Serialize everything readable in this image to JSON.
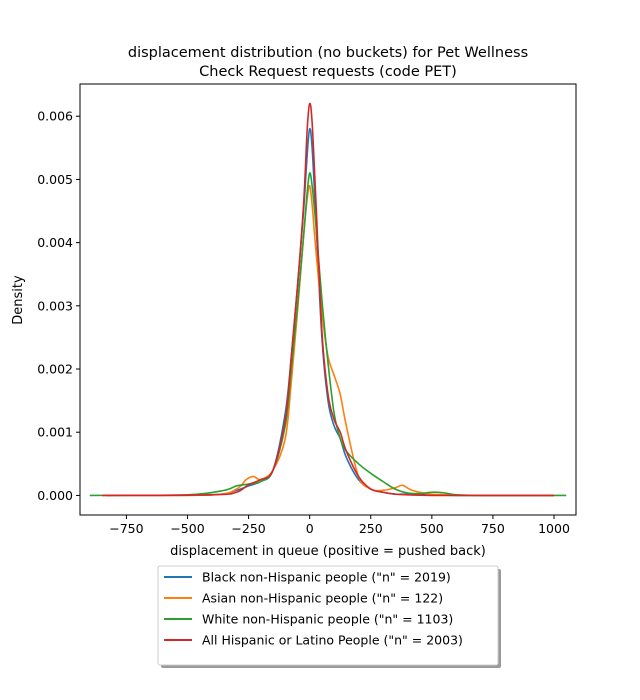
{
  "chart_data": {
    "type": "line",
    "title": "displacement distribution (no buckets)  for Pet Wellness\nCheck Request requests (code PET)",
    "xlabel": "displacement in queue (positive = pushed back)",
    "ylabel": "Density",
    "xlim": [
      -940,
      1090
    ],
    "ylim": [
      -0.00031,
      0.00651
    ],
    "x_ticks": [
      -750,
      -500,
      -250,
      0,
      250,
      500,
      750,
      1000
    ],
    "x_tick_labels": [
      "−750",
      "−500",
      "−250",
      "0",
      "250",
      "500",
      "750",
      "1000"
    ],
    "y_ticks": [
      0.0,
      0.001,
      0.002,
      0.003,
      0.004,
      0.005,
      0.006
    ],
    "y_tick_labels": [
      "0.000",
      "0.001",
      "0.002",
      "0.003",
      "0.004",
      "0.005",
      "0.006"
    ],
    "grid": false,
    "legend_position": "below plot, centered",
    "series": [
      {
        "name": "Black non-Hispanic people (\"n\" = 2019)",
        "color": "#1f77b4",
        "x": [
          -830,
          -400,
          -300,
          -250,
          -200,
          -150,
          -100,
          -75,
          -50,
          -25,
          -10,
          0,
          10,
          25,
          50,
          75,
          100,
          125,
          150,
          200,
          250,
          300,
          350,
          400,
          500,
          600,
          700,
          1000
        ],
        "y": [
          0,
          1e-05,
          8e-05,
          0.00015,
          0.00022,
          0.0004,
          0.0013,
          0.0022,
          0.0033,
          0.0045,
          0.0054,
          0.0058,
          0.0055,
          0.0044,
          0.0025,
          0.0015,
          0.0011,
          0.0009,
          0.0006,
          0.00025,
          0.0001,
          5e-05,
          2e-05,
          2e-05,
          1e-05,
          0,
          0,
          0
        ]
      },
      {
        "name": "Asian non-Hispanic people (\"n\" = 122)",
        "color": "#ff7f0e",
        "x": [
          -830,
          -400,
          -300,
          -260,
          -230,
          -200,
          -150,
          -100,
          -75,
          -50,
          -25,
          -10,
          0,
          10,
          25,
          50,
          75,
          100,
          125,
          150,
          200,
          250,
          300,
          350,
          380,
          420,
          500,
          600,
          700,
          1000
        ],
        "y": [
          0,
          1e-05,
          0.0001,
          0.00025,
          0.0003,
          0.00025,
          0.0004,
          0.0009,
          0.0018,
          0.0029,
          0.0041,
          0.0047,
          0.0049,
          0.0046,
          0.0039,
          0.0029,
          0.0022,
          0.0019,
          0.0016,
          0.0011,
          0.0003,
          0.0001,
          8e-05,
          0.00012,
          0.00016,
          8e-05,
          2e-05,
          1e-05,
          0,
          0
        ]
      },
      {
        "name": "White non-Hispanic people (\"n\" = 1103)",
        "color": "#2ca02c",
        "x": [
          -900,
          -500,
          -350,
          -300,
          -250,
          -200,
          -150,
          -100,
          -75,
          -50,
          -25,
          -10,
          0,
          10,
          25,
          50,
          75,
          100,
          125,
          150,
          200,
          250,
          300,
          350,
          400,
          450,
          500,
          550,
          600,
          700,
          1050
        ],
        "y": [
          0,
          1e-05,
          8e-05,
          0.00015,
          0.00018,
          0.00022,
          0.0004,
          0.0011,
          0.002,
          0.003,
          0.0041,
          0.0048,
          0.0051,
          0.0049,
          0.0043,
          0.0031,
          0.0021,
          0.0013,
          0.0009,
          0.0007,
          0.0005,
          0.00035,
          0.00022,
          0.0001,
          4e-05,
          3e-05,
          5e-05,
          4e-05,
          1e-05,
          0,
          0
        ]
      },
      {
        "name": "All Hispanic or Latino People (\"n\" = 2003)",
        "color": "#d62728",
        "x": [
          -850,
          -400,
          -300,
          -250,
          -200,
          -150,
          -100,
          -75,
          -50,
          -25,
          -10,
          0,
          10,
          25,
          50,
          75,
          100,
          125,
          150,
          200,
          250,
          300,
          350,
          400,
          500,
          600,
          700,
          1000
        ],
        "y": [
          0,
          1e-05,
          5e-05,
          0.00017,
          0.00025,
          0.0004,
          0.0012,
          0.0022,
          0.0033,
          0.0046,
          0.0058,
          0.0062,
          0.0059,
          0.0047,
          0.0026,
          0.0016,
          0.0012,
          0.001,
          0.0007,
          0.0003,
          0.0001,
          5e-05,
          2e-05,
          1e-05,
          0,
          0,
          0,
          0
        ]
      }
    ]
  }
}
